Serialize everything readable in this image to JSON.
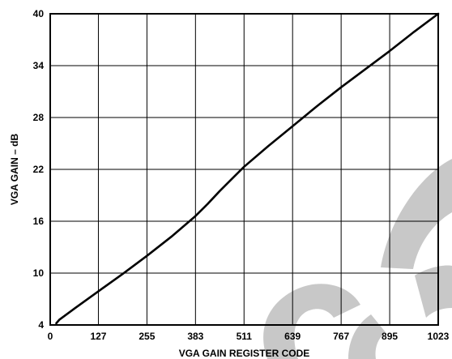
{
  "chart_data": {
    "type": "line",
    "title": "",
    "xlabel": "VGA GAIN REGISTER CODE",
    "ylabel": "VGA GAIN – dB",
    "xlim": [
      0,
      1023
    ],
    "ylim": [
      4,
      40
    ],
    "xticks": [
      0,
      127,
      255,
      383,
      511,
      639,
      767,
      895,
      1023
    ],
    "yticks": [
      4,
      10,
      16,
      22,
      28,
      34,
      40
    ],
    "grid": true,
    "series": [
      {
        "x": [
          16,
          24,
          64,
          127,
          191,
          255,
          319,
          383,
          415,
          447,
          479,
          511,
          575,
          639,
          703,
          767,
          831,
          895,
          959,
          1023
        ],
        "y": [
          4.2,
          4.6,
          5.9,
          7.9,
          9.9,
          12.0,
          14.2,
          16.6,
          18.0,
          19.5,
          20.9,
          22.3,
          24.7,
          27.0,
          29.3,
          31.5,
          33.6,
          35.7,
          37.9,
          40.0
        ]
      }
    ],
    "watermark_color": "#c8c8c8",
    "line_color": "#000000"
  }
}
